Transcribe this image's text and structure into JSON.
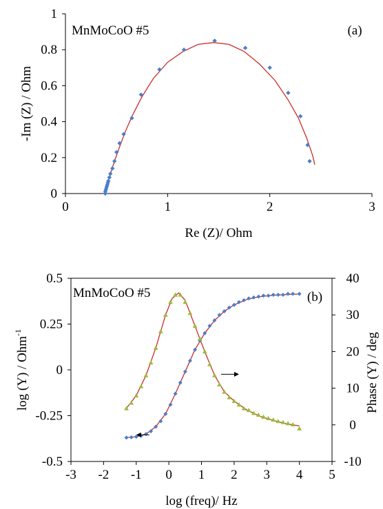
{
  "chart_data": [
    {
      "type": "scatter",
      "panel_label": "(a)",
      "annotation": "MnMoCoO #5",
      "xlabel": "Re (Z)/ Ohm",
      "ylabel": "-Im (Z) / Ohm",
      "xlim": [
        0,
        3
      ],
      "ylim": [
        0,
        1
      ],
      "xticks": [
        "0",
        "1",
        "2",
        "3"
      ],
      "yticks": [
        "0",
        "0.2",
        "0.4",
        "0.6",
        "0.8",
        "1"
      ],
      "grid": false,
      "colors": {
        "points": "#4a7fc9",
        "fit": "#cc2a2a"
      },
      "series": [
        {
          "kind": "points",
          "x": [
            0.39,
            0.39,
            0.395,
            0.4,
            0.405,
            0.41,
            0.415,
            0.42,
            0.43,
            0.44,
            0.46,
            0.48,
            0.5,
            0.53,
            0.57,
            0.65,
            0.74,
            0.92,
            1.16,
            1.46,
            1.76,
            2.0,
            2.18,
            2.3,
            2.37,
            2.39
          ],
          "y": [
            0.0,
            0.01,
            0.02,
            0.03,
            0.04,
            0.05,
            0.06,
            0.07,
            0.09,
            0.11,
            0.14,
            0.18,
            0.23,
            0.28,
            0.33,
            0.42,
            0.55,
            0.69,
            0.8,
            0.85,
            0.81,
            0.7,
            0.56,
            0.43,
            0.27,
            0.18
          ]
        },
        {
          "kind": "fit",
          "x": [
            0.39,
            0.41,
            0.44,
            0.48,
            0.53,
            0.59,
            0.66,
            0.75,
            0.86,
            1.0,
            1.15,
            1.3,
            1.45,
            1.6,
            1.75,
            1.9,
            2.05,
            2.18,
            2.28,
            2.36,
            2.42,
            2.44
          ],
          "y": [
            0.0,
            0.05,
            0.11,
            0.18,
            0.26,
            0.35,
            0.44,
            0.54,
            0.64,
            0.73,
            0.79,
            0.83,
            0.84,
            0.83,
            0.79,
            0.72,
            0.63,
            0.52,
            0.42,
            0.31,
            0.21,
            0.16
          ]
        }
      ]
    },
    {
      "type": "line",
      "panel_label": "(b)",
      "annotation": "MnMoCoO #5",
      "xlabel": "log (freq)/ Hz",
      "ylabel": "log (Y) / Ohm",
      "ylabel_superscript": "-1",
      "y2label": "Phase (Y) / deg",
      "xlim": [
        -3,
        5
      ],
      "ylim": [
        -0.5,
        0.5
      ],
      "y2lim": [
        -10,
        40
      ],
      "xticks": [
        "-3",
        "-2",
        "-1",
        "0",
        "1",
        "2",
        "3",
        "4",
        "5"
      ],
      "yticks": [
        "-0.5",
        "-0.25",
        "0",
        "0.25",
        "0.5"
      ],
      "y2ticks": [
        "-10",
        "0",
        "10",
        "20",
        "30",
        "40"
      ],
      "grid": false,
      "arrows": [
        "left arrow points to log (Y) axis",
        "right arrow points to Phase axis"
      ],
      "colors": {
        "logY": "#4a7fc9",
        "phase": "#9bbb3c",
        "fit": "#cc2a2a"
      },
      "series": [
        {
          "kind": "points",
          "axis": "left",
          "marker": "diamond",
          "x": [
            -1.3,
            -1.15,
            -1.0,
            -0.85,
            -0.7,
            -0.55,
            -0.4,
            -0.25,
            -0.1,
            0.05,
            0.2,
            0.35,
            0.5,
            0.65,
            0.8,
            0.95,
            1.1,
            1.25,
            1.4,
            1.55,
            1.7,
            1.85,
            2.0,
            2.15,
            2.3,
            2.45,
            2.6,
            2.75,
            2.9,
            3.05,
            3.2,
            3.35,
            3.5,
            3.65,
            3.8,
            4.0
          ],
          "y": [
            -0.37,
            -0.368,
            -0.365,
            -0.36,
            -0.35,
            -0.335,
            -0.31,
            -0.28,
            -0.24,
            -0.19,
            -0.13,
            -0.07,
            -0.01,
            0.05,
            0.11,
            0.16,
            0.2,
            0.24,
            0.27,
            0.3,
            0.32,
            0.34,
            0.355,
            0.37,
            0.38,
            0.39,
            0.395,
            0.4,
            0.405,
            0.405,
            0.41,
            0.41,
            0.41,
            0.415,
            0.415,
            0.415
          ]
        },
        {
          "kind": "points",
          "axis": "right",
          "marker": "triangle",
          "x": [
            -1.3,
            -1.15,
            -1.0,
            -0.85,
            -0.7,
            -0.55,
            -0.4,
            -0.25,
            -0.1,
            0.05,
            0.2,
            0.35,
            0.5,
            0.65,
            0.8,
            0.95,
            1.1,
            1.25,
            1.4,
            1.55,
            1.7,
            1.85,
            2.0,
            2.15,
            2.3,
            2.45,
            2.6,
            2.75,
            2.9,
            3.05,
            3.2,
            3.35,
            3.5,
            3.65,
            3.8,
            4.0
          ],
          "y": [
            4.5,
            6.0,
            8.0,
            10.5,
            13.5,
            17.0,
            21.0,
            25.5,
            30.0,
            33.5,
            35.5,
            35.5,
            33.5,
            30.5,
            27.0,
            23.5,
            20.0,
            16.5,
            13.5,
            11.0,
            9.0,
            7.5,
            6.5,
            5.5,
            4.5,
            4.0,
            3.2,
            2.7,
            2.2,
            1.8,
            1.4,
            1.0,
            0.7,
            0.4,
            0.1,
            -1.0
          ]
        },
        {
          "kind": "fit",
          "axis": "left",
          "x": [
            -1.3,
            -1.0,
            -0.7,
            -0.4,
            -0.1,
            0.2,
            0.5,
            0.8,
            1.1,
            1.4,
            1.7,
            2.0,
            2.4,
            2.8,
            3.2,
            3.6,
            4.0
          ],
          "y": [
            -0.37,
            -0.365,
            -0.35,
            -0.31,
            -0.24,
            -0.13,
            -0.01,
            0.11,
            0.2,
            0.27,
            0.32,
            0.355,
            0.385,
            0.4,
            0.407,
            0.411,
            0.414
          ]
        },
        {
          "kind": "fit",
          "axis": "right",
          "x": [
            -1.3,
            -1.0,
            -0.7,
            -0.4,
            -0.1,
            0.1,
            0.3,
            0.5,
            0.8,
            1.1,
            1.4,
            1.7,
            2.0,
            2.4,
            2.8,
            3.2,
            3.6,
            4.0
          ],
          "y": [
            4.5,
            8.0,
            13.5,
            21.0,
            30.0,
            34.5,
            36.0,
            34.0,
            27.0,
            20.0,
            13.5,
            9.0,
            6.5,
            4.0,
            2.3,
            1.2,
            0.3,
            -0.3
          ]
        }
      ]
    }
  ]
}
